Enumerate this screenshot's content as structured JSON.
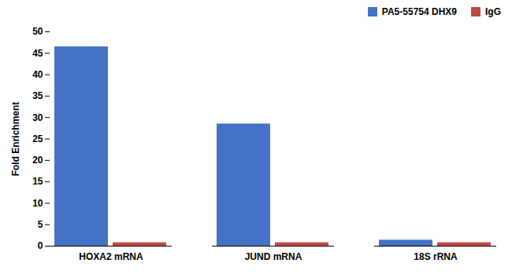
{
  "chart_data": {
    "type": "bar",
    "categories": [
      "HOXA2 mRNA",
      "JUND mRNA",
      "18S rRNA"
    ],
    "series": [
      {
        "name": "PA5-55754 DHX9",
        "color": "#4472C4",
        "values": [
          46.5,
          28.5,
          1.4
        ]
      },
      {
        "name": "IgG",
        "color": "#BE4B48",
        "values": [
          0.8,
          0.8,
          0.8
        ]
      }
    ],
    "ylabel": "Fold Enrichment",
    "ylim": [
      0,
      50
    ],
    "yticks": [
      0,
      5,
      10,
      15,
      20,
      25,
      30,
      35,
      40,
      45,
      50
    ],
    "grid": false,
    "legend": "upper right"
  }
}
